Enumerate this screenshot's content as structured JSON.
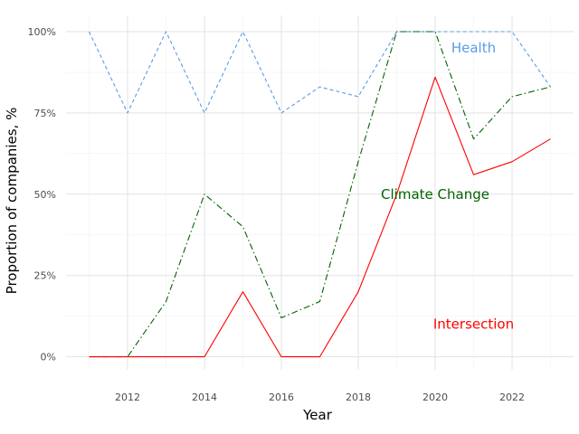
{
  "chart_data": {
    "type": "line",
    "title": "",
    "xlabel": "Year",
    "ylabel": "Proportion of companies, %",
    "xlim": [
      2010.4,
      2023.6
    ],
    "ylim": [
      -0.04,
      1.05
    ],
    "x_ticks": [
      2012,
      2014,
      2016,
      2018,
      2020,
      2022
    ],
    "x_tick_labels": [
      "2012",
      "2014",
      "2016",
      "2018",
      "2020",
      "2022"
    ],
    "y_ticks": [
      0,
      0.25,
      0.5,
      0.75,
      1.0
    ],
    "y_tick_labels": [
      "0%",
      "25%",
      "50%",
      "75%",
      "100%"
    ],
    "grid": true,
    "legend": "none",
    "x": [
      2011,
      2012,
      2013,
      2014,
      2015,
      2016,
      2017,
      2018,
      2019,
      2020,
      2021,
      2022,
      2023
    ],
    "series": [
      {
        "name": "Health",
        "color": "#5b9be8",
        "dash": "dashed",
        "values": [
          1.0,
          0.75,
          1.0,
          0.75,
          1.0,
          0.75,
          0.83,
          0.8,
          1.0,
          1.0,
          1.0,
          1.0,
          0.83
        ],
        "label_x": 2021.0,
        "label_y": 0.95
      },
      {
        "name": "Climate Change",
        "color": "#006400",
        "dash": "dashdot",
        "values": [
          0.0,
          0.0,
          0.17,
          0.5,
          0.4,
          0.12,
          0.17,
          0.6,
          1.0,
          1.0,
          0.67,
          0.8,
          0.83
        ],
        "label_x": 2020.0,
        "label_y": 0.5
      },
      {
        "name": "Intersection",
        "color": "#ff0000",
        "dash": "solid",
        "values": [
          0.0,
          0.0,
          0.0,
          0.0,
          0.2,
          0.0,
          0.0,
          0.2,
          0.5,
          0.86,
          0.56,
          0.6,
          0.67
        ],
        "label_x": 2021.0,
        "label_y": 0.1
      }
    ]
  }
}
